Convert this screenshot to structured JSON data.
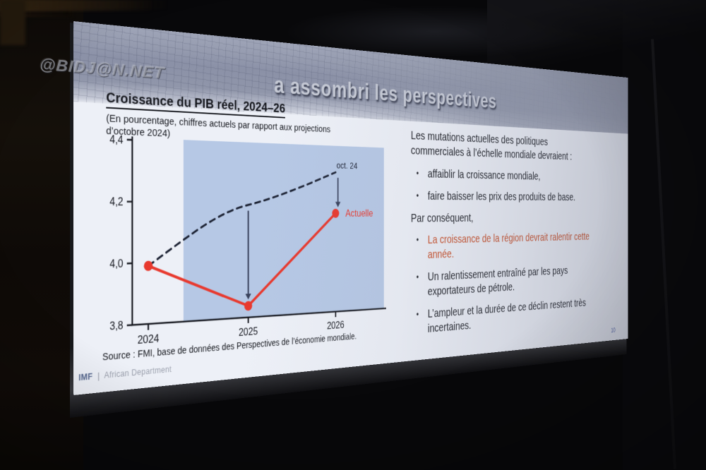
{
  "chart_data": {
    "type": "line",
    "title": "Croissance du PIB réel, 2024–26",
    "subtitle": "(En pourcentage, chiffres actuels par rapport aux projections d’octobre 2024)",
    "x_labels": [
      "2024",
      "2025",
      "2026"
    ],
    "y_tick_labels": [
      "4,4",
      "4,2",
      "4,0",
      "3,8"
    ],
    "ylim": [
      3.8,
      4.4
    ],
    "grid": false,
    "legend_position": "inline-annotations",
    "shaded_band_note": "blue shaded projection period from mid-2024 through 2026",
    "series": [
      {
        "name": "oct. 24",
        "style": "dashed",
        "color": "#1c2233",
        "values": [
          3.99,
          4.19,
          4.31
        ]
      },
      {
        "name": "Actuelle",
        "style": "solid",
        "color": "#e8392e",
        "values": [
          3.99,
          3.84,
          4.16
        ]
      }
    ],
    "annotations": [
      {
        "type": "arrow-down",
        "x": "2025",
        "from": 4.19,
        "to": 3.84
      },
      {
        "type": "arrow-down",
        "x": "2026",
        "from": 4.31,
        "to": 4.16
      }
    ],
    "source": "Source : FMI, base de données des Perspectives de l’économie mondiale."
  },
  "banner": {
    "title": "a assombri les perspectives"
  },
  "right_panel": {
    "intro": "Les mutations actuelles des politiques commerciales à l’échelle mondiale devraient :",
    "bullet_1": "affaiblir la croissance mondiale,",
    "bullet_2": "faire baisser les prix des produits de base.",
    "consequence": "Par conséquent,",
    "highlight": "La croissance de la région devrait ralentir cette année.",
    "bullet_3": "Un ralentissement entraîné par les pays exportateurs de pétrole.",
    "bullet_4": "L’ampleur et la durée de ce déclin restent très incertaines."
  },
  "footer": {
    "org": "IMF",
    "separator": "|",
    "department": "African Department",
    "page_number": "10"
  },
  "watermark": "@BIDJ@N.NET",
  "ui": {
    "bullet_char": "•"
  },
  "colors": {
    "accent_red": "#e8392e",
    "highlight_orange": "#c94e27",
    "projection_shade_blue": "#b6c8e5",
    "arrow_slate": "#39425c",
    "imf_blue": "#52648c",
    "banner_gray": "#8b91a7"
  }
}
